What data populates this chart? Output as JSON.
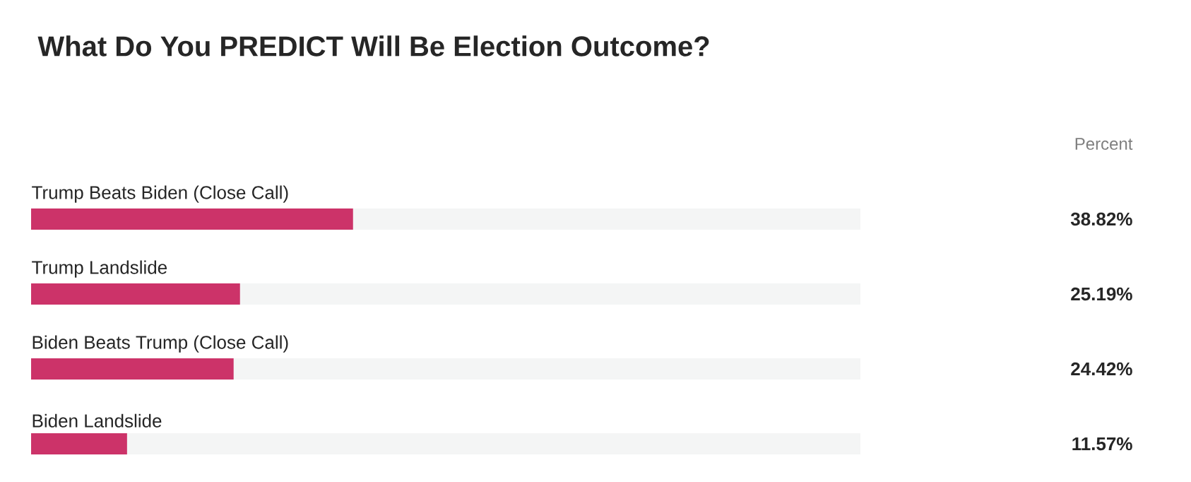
{
  "chart_data": {
    "type": "bar",
    "orientation": "horizontal",
    "title": "What Do You PREDICT Will Be Election Outcome?",
    "annotations": [
      "Percent"
    ],
    "categories": [
      "Trump Beats Biden (Close Call)",
      "Trump Landslide",
      "Biden Beats Trump (Close Call)",
      "Biden Landslide"
    ],
    "values": [
      38.82,
      25.19,
      24.42,
      11.57
    ],
    "value_labels": [
      "38.82%",
      "25.19%",
      "24.42%",
      "11.57%"
    ],
    "color": "#cc3369",
    "xlim": [
      0,
      100
    ]
  }
}
